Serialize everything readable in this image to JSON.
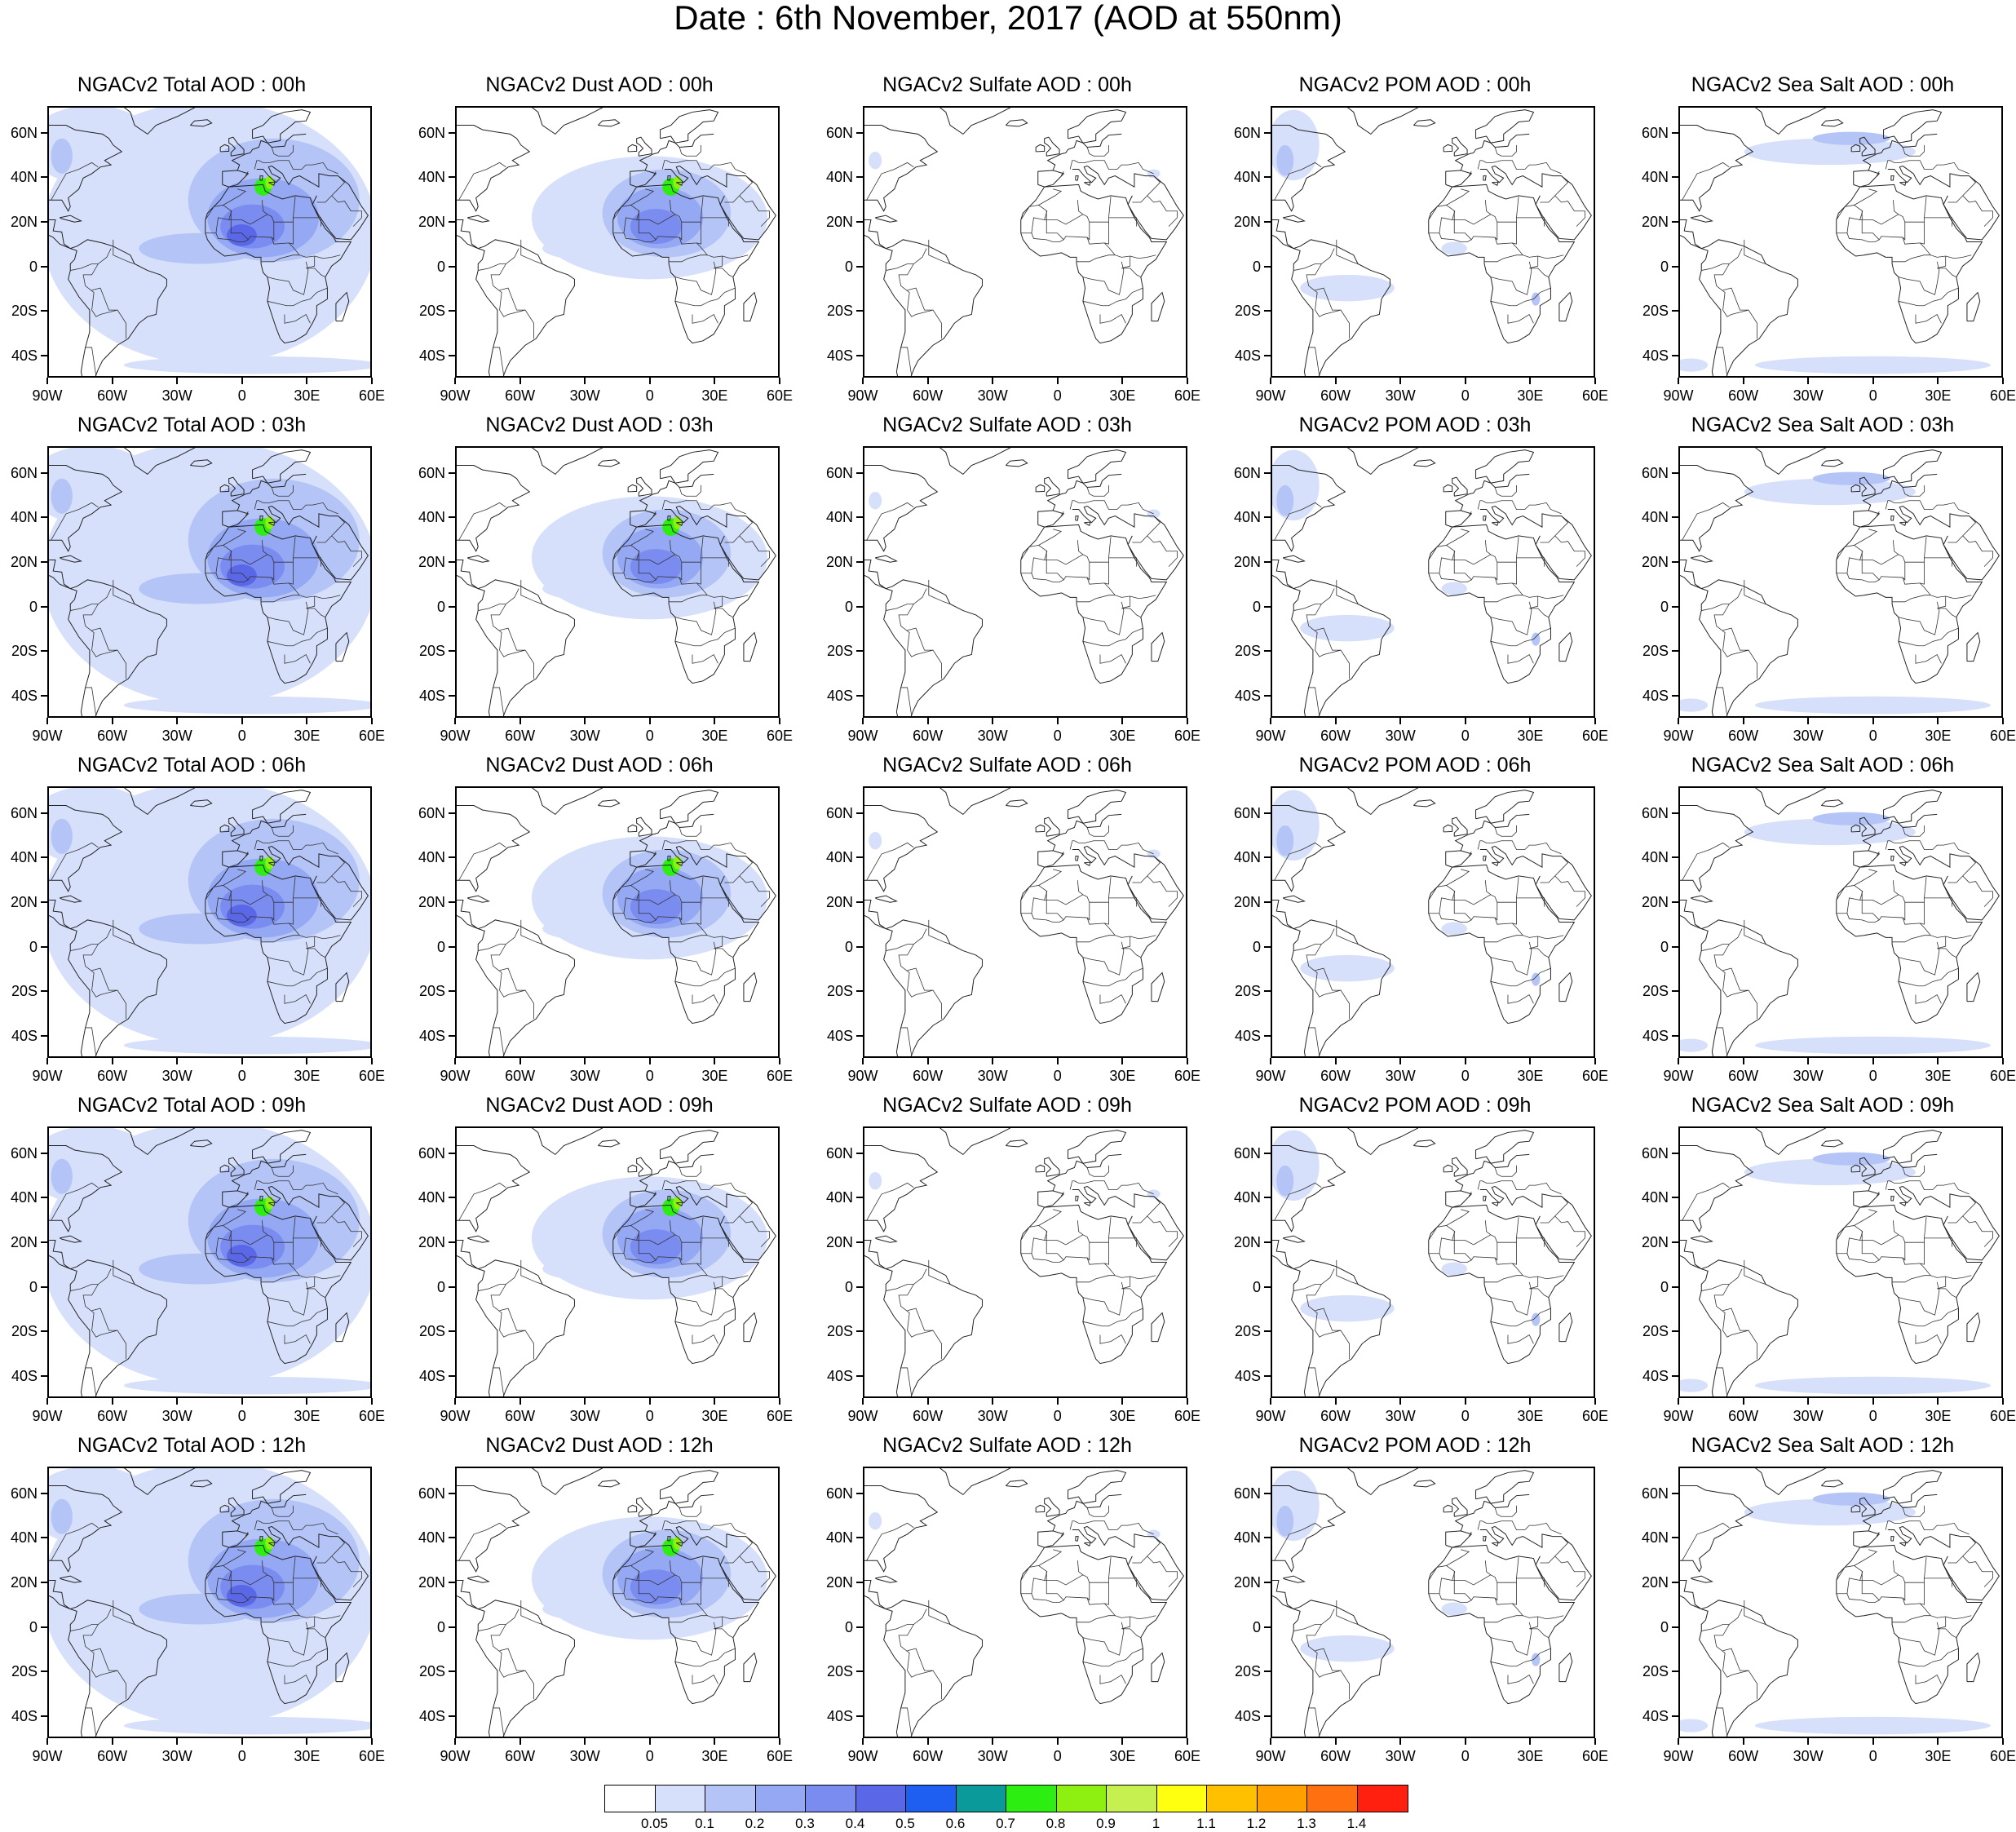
{
  "title": "Date : 6th November, 2017 (AOD at 550nm)",
  "lat_labels": [
    "60N",
    "40N",
    "20N",
    "0",
    "20S",
    "40S"
  ],
  "lon_labels": [
    "90W",
    "60W",
    "30W",
    "0",
    "30E",
    "60E"
  ],
  "panels": [
    {
      "title": "NGACv2 Total AOD : 00h",
      "type": "total"
    },
    {
      "title": "NGACv2 Dust AOD : 00h",
      "type": "dust"
    },
    {
      "title": "NGACv2 Sulfate AOD : 00h",
      "type": "sulfate"
    },
    {
      "title": "NGACv2 POM AOD : 00h",
      "type": "pom"
    },
    {
      "title": "NGACv2 Sea Salt AOD : 00h",
      "type": "seasalt"
    },
    {
      "title": "NGACv2 Total AOD : 03h",
      "type": "total"
    },
    {
      "title": "NGACv2 Dust AOD : 03h",
      "type": "dust"
    },
    {
      "title": "NGACv2 Sulfate AOD : 03h",
      "type": "sulfate"
    },
    {
      "title": "NGACv2 POM AOD : 03h",
      "type": "pom"
    },
    {
      "title": "NGACv2 Sea Salt AOD : 03h",
      "type": "seasalt"
    },
    {
      "title": "NGACv2 Total AOD : 06h",
      "type": "total"
    },
    {
      "title": "NGACv2 Dust AOD : 06h",
      "type": "dust"
    },
    {
      "title": "NGACv2 Sulfate AOD : 06h",
      "type": "sulfate"
    },
    {
      "title": "NGACv2 POM AOD : 06h",
      "type": "pom"
    },
    {
      "title": "NGACv2 Sea Salt AOD : 06h",
      "type": "seasalt"
    },
    {
      "title": "NGACv2 Total AOD : 09h",
      "type": "total"
    },
    {
      "title": "NGACv2 Dust AOD : 09h",
      "type": "dust"
    },
    {
      "title": "NGACv2 Sulfate AOD : 09h",
      "type": "sulfate"
    },
    {
      "title": "NGACv2 POM AOD : 09h",
      "type": "pom"
    },
    {
      "title": "NGACv2 Sea Salt  AOD : 09h",
      "type": "seasalt"
    },
    {
      "title": "NGACv2 Total AOD  : 12h",
      "type": "total"
    },
    {
      "title": "NGACv2 Dust AOD : 12h",
      "type": "dust"
    },
    {
      "title": "NGACv2 Sulfate AOD : 12h",
      "type": "sulfate"
    },
    {
      "title": "NGACv2 POM  AOD : 12h",
      "type": "pom"
    },
    {
      "title": "NGACv2 Sea Salt  AOD : 12h",
      "type": "seasalt"
    }
  ],
  "colorbar": {
    "labels": [
      "0.05",
      "0.1",
      "0.2",
      "0.3",
      "0.4",
      "0.5",
      "0.6",
      "0.7",
      "0.8",
      "0.9",
      "1",
      "1.1",
      "1.2",
      "1.3",
      "1.4"
    ],
    "colors": [
      "#ffffff",
      "#d6e0fb",
      "#b4c4f6",
      "#94a8f4",
      "#7a8cf0",
      "#5a68e8",
      "#1e5ef0",
      "#0a9a9a",
      "#2cee10",
      "#8ef010",
      "#c6f050",
      "#ffff10",
      "#ffc000",
      "#ffa000",
      "#ff7010",
      "#ff2010"
    ]
  }
}
